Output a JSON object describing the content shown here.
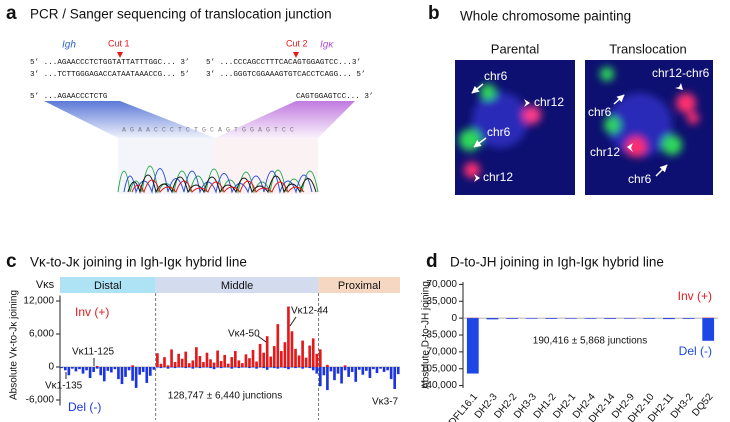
{
  "panel_a": {
    "letter": "a",
    "title": "PCR / Sanger sequencing of translocation junction",
    "igh_label": "Igh",
    "igk_label": "Igκ",
    "cut1": "Cut 1",
    "cut2": "Cut 2",
    "sequences": [
      [
        "5’ ...AGAACCCTCTGGTATTATTTGGC... 3’",
        "5’ ...CCCAGCCTTTCACAGTGGAGTCC...3’"
      ],
      [
        "3’ ...TCTTGGGAGACCATAATAAACCG... 5’",
        "3’ ...GGGTCGGAAAGTGTCACCTCAGG... 5’"
      ],
      [
        "5’ ...AGAACCCTCTG",
        "CAGTGGAGTCC... 3’"
      ]
    ],
    "chromatogram_bases": "AGAACCCTCTGCAGTGGAGTCC"
  },
  "panel_b": {
    "letter": "b",
    "title": "Whole chromosome painting",
    "images": [
      {
        "title": "Parental",
        "labels": [
          "chr6",
          "chr12",
          "chr6",
          "chr12"
        ]
      },
      {
        "title": "Translocation",
        "labels": [
          "chr12-chr6",
          "chr6",
          "chr12",
          "chr6"
        ]
      }
    ]
  },
  "chart_data": [
    {
      "type": "bar",
      "panel_label": "c",
      "title": "Vκ-to-Jκ joining in Igh-Igκ hybrid line",
      "ylabel": "Absolute Vκ-to-Jκ joining",
      "xlabel": "Vκs",
      "regions": [
        {
          "name": "Distal",
          "color": "#aee3f5"
        },
        {
          "name": "Middle",
          "color": "#d3dbef"
        },
        {
          "name": "Proximal",
          "color": "#f6d8c2"
        }
      ],
      "annotations": [
        "Vκ11-125",
        "Vκ1-135",
        "Vκ4-50",
        "Vκ12-44",
        "Vκ3-7"
      ],
      "total_text": "128,747 ± 6,440 junctions",
      "categories": [
        null,
        null,
        null,
        null,
        null,
        null,
        null,
        null,
        null,
        null,
        null,
        null,
        null,
        null,
        null,
        null,
        null,
        null,
        null,
        null,
        null,
        null,
        null,
        null,
        null,
        null,
        null,
        null,
        null,
        null,
        null,
        null,
        null,
        null,
        null,
        null,
        null,
        null,
        null,
        null,
        null,
        null,
        null,
        null,
        null,
        null,
        null,
        null,
        null,
        null,
        null,
        null,
        null,
        null,
        null,
        null,
        null,
        null,
        null,
        null,
        null,
        null,
        null,
        null,
        null,
        null,
        null,
        null,
        null,
        null,
        null,
        null,
        null,
        null,
        null,
        null,
        null,
        null,
        null,
        null,
        null,
        null,
        null,
        null,
        null,
        null,
        null,
        null,
        null,
        null,
        null,
        null,
        null,
        null,
        null,
        null
      ],
      "series": [
        {
          "name": "Inv (+)",
          "color": "#e3191c",
          "values": [
            0,
            0,
            0,
            0,
            0,
            0,
            0,
            0,
            0,
            0,
            200,
            0,
            0,
            0,
            0,
            0,
            0,
            0,
            0,
            0,
            300,
            0,
            0,
            0,
            0,
            0,
            0,
            2500,
            600,
            1800,
            300,
            3200,
            900,
            2400,
            1500,
            2800,
            700,
            1200,
            3600,
            2000,
            900,
            2600,
            1400,
            800,
            3000,
            1100,
            2200,
            600,
            1800,
            2900,
            1200,
            700,
            2300,
            1600,
            3100,
            1000,
            4200,
            2600,
            5600,
            1900,
            3800,
            7800,
            2900,
            4500,
            11000,
            6500,
            3300,
            2100,
            4800,
            1700,
            3900,
            5200,
            2400,
            3200,
            0,
            400,
            0,
            0,
            0,
            0,
            300,
            0,
            0,
            0,
            0,
            0,
            0,
            0,
            0,
            0,
            0,
            0,
            0,
            0,
            0,
            0
          ]
        },
        {
          "name": "Del (-)",
          "color": "#1c34e0",
          "values": [
            -200,
            -600,
            -1500,
            -300,
            -800,
            -400,
            -1200,
            -600,
            -2000,
            -900,
            -300,
            -1500,
            -2600,
            -700,
            -1000,
            -400,
            -2200,
            -3100,
            -1800,
            -600,
            -2500,
            -3800,
            -1400,
            -900,
            -2900,
            -1600,
            -500,
            -100,
            -200,
            -100,
            -300,
            -100,
            -200,
            -100,
            -100,
            -200,
            -100,
            -300,
            -100,
            -200,
            -100,
            -100,
            -200,
            -400,
            -100,
            -200,
            -100,
            -100,
            -300,
            -100,
            -200,
            -100,
            -100,
            -200,
            -100,
            -300,
            -100,
            -200,
            -500,
            -100,
            -200,
            -300,
            -100,
            -200,
            -400,
            -100,
            -200,
            -100,
            -300,
            -100,
            -200,
            -600,
            -1200,
            -3500,
            -1500,
            -4200,
            -800,
            -2400,
            -1200,
            -3000,
            -600,
            -1800,
            -900,
            -2700,
            -500,
            -1400,
            -700,
            -2000,
            -400,
            -1100,
            -300,
            -900,
            -600,
            -2200,
            -4000,
            -1300
          ]
        }
      ],
      "ylim": [
        -7000,
        13000
      ],
      "yticks": [
        {
          "value": 12000,
          "label": "12,000"
        },
        {
          "value": 6000,
          "label": "6,000"
        },
        0,
        {
          "value": -6000,
          "label": "-6,000"
        }
      ]
    },
    {
      "type": "bar",
      "panel_label": "d",
      "title": "D-to-JH joining in Igh-Igκ hybrid line",
      "ylabel": "Absolute D-to-JH joining",
      "total_text": "190,416 ± 5,868 junctions",
      "categories": [
        "DFL16.1",
        "DH2-3",
        "DH2-2",
        "DH3-3",
        "DH1-2",
        "DH2-1",
        "DH2-4",
        "DH2-14",
        "DH2-9",
        "DH2-10",
        "DH2-11",
        "DH3-2",
        "DQ52"
      ],
      "series": [
        {
          "name": "Inv (+)",
          "color": "#e3191c",
          "values": [
            600,
            300,
            200,
            200,
            300,
            200,
            200,
            300,
            200,
            200,
            300,
            200,
            900
          ]
        },
        {
          "name": "Del (-)",
          "color": "#1c46e6",
          "values": [
            -115000,
            -2500,
            -1500,
            -1200,
            -1500,
            -1200,
            -1300,
            -1500,
            -1200,
            -1400,
            -2000,
            -1500,
            -47000
          ]
        }
      ],
      "ylim": [
        -145000,
        75000
      ],
      "yticks": [
        {
          "value": 70000,
          "label": "70,000"
        },
        {
          "value": 35000,
          "label": "35,000"
        },
        0,
        {
          "value": -35000,
          "label": "35,000"
        },
        {
          "value": -70000,
          "label": "70,000"
        },
        {
          "value": -105000,
          "label": "105,000"
        },
        {
          "value": -140000,
          "label": "140,000"
        }
      ]
    }
  ]
}
